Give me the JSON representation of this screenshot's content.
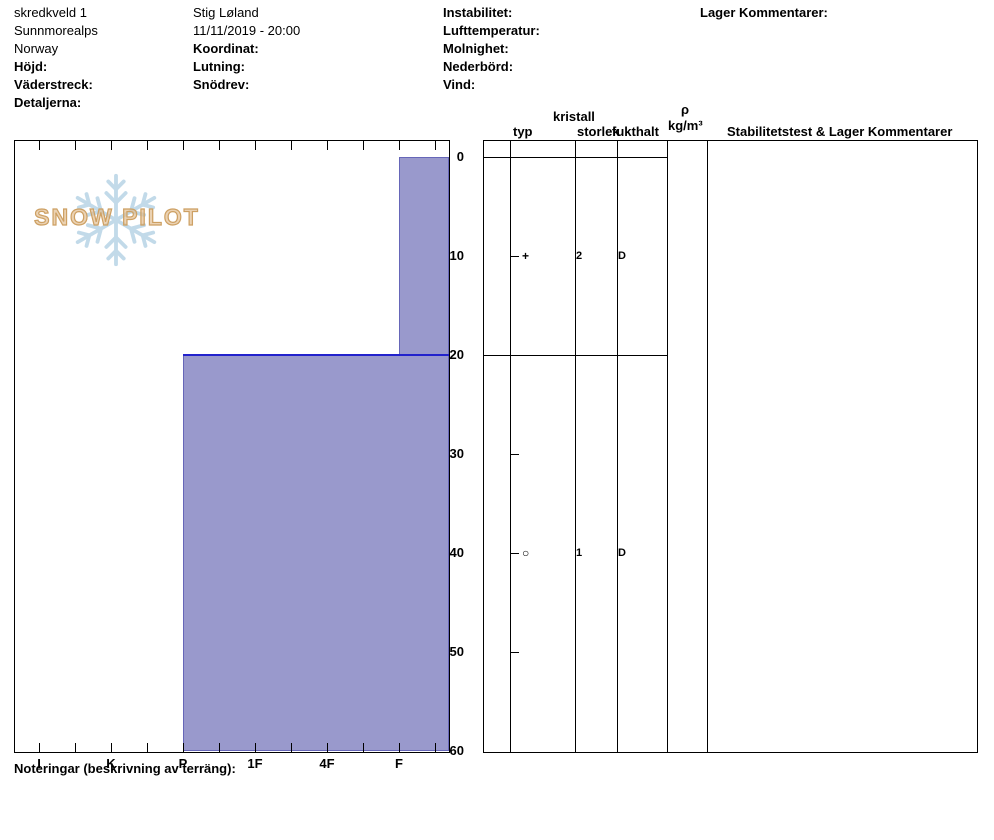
{
  "header": {
    "pit_name": "skredkveld 1",
    "range": "Sunnmorealps",
    "country": "Norway",
    "elevation_label": "Höjd:",
    "aspect_label": "Väderstreck:",
    "details_label": "Detaljerna:",
    "observer": "Stig Løland",
    "datetime": "11/11/2019 - 20:00",
    "coordinates_label": "Koordinat:",
    "slope_label": "Lutning:",
    "drift_label": "Snödrev:",
    "instability_label": "Instabilitet:",
    "air_temp_label": "Lufttemperatur:",
    "sky_label": "Molnighet:",
    "precip_label": "Nederbörd:",
    "wind_label": "Vind:",
    "layer_comments_label": "Lager Kommentarer:"
  },
  "logo": {
    "text": "SNOW PILOT",
    "snowflake_color": "#b8d4e6",
    "text_color": "#d8b480"
  },
  "table_headers": {
    "kristall": "kristall",
    "typ": "typ",
    "storlek": "storlek",
    "fukthalt": "fukthalt",
    "rho": "ρ",
    "rho_unit": "kg/m³",
    "stability": "Stabilitetstest & Lager Kommentarer"
  },
  "footer": {
    "notes_label": "Noteringar (beskrivning av terräng):"
  },
  "chart_data": {
    "type": "bar",
    "orientation": "horizontal-snow-profile",
    "x_categories": [
      "I",
      "K",
      "P",
      "1F",
      "4F",
      "F"
    ],
    "y_ticks": [
      0,
      10,
      20,
      30,
      40,
      50,
      60
    ],
    "ylim": [
      0,
      60
    ],
    "depth_unit": "cm",
    "grid": false,
    "bar_color": "#9999cc",
    "layer_boundary_color": "#2222cc",
    "layers": [
      {
        "depth_top_cm": 0,
        "depth_bottom_cm": 20,
        "hardness": "F",
        "grain_type_symbol": "+",
        "grain_size": "2",
        "moisture": "D"
      },
      {
        "depth_top_cm": 20,
        "depth_bottom_cm": 60,
        "hardness": "P",
        "grain_type_symbol": "○",
        "grain_size": "1",
        "moisture": "D"
      }
    ]
  }
}
